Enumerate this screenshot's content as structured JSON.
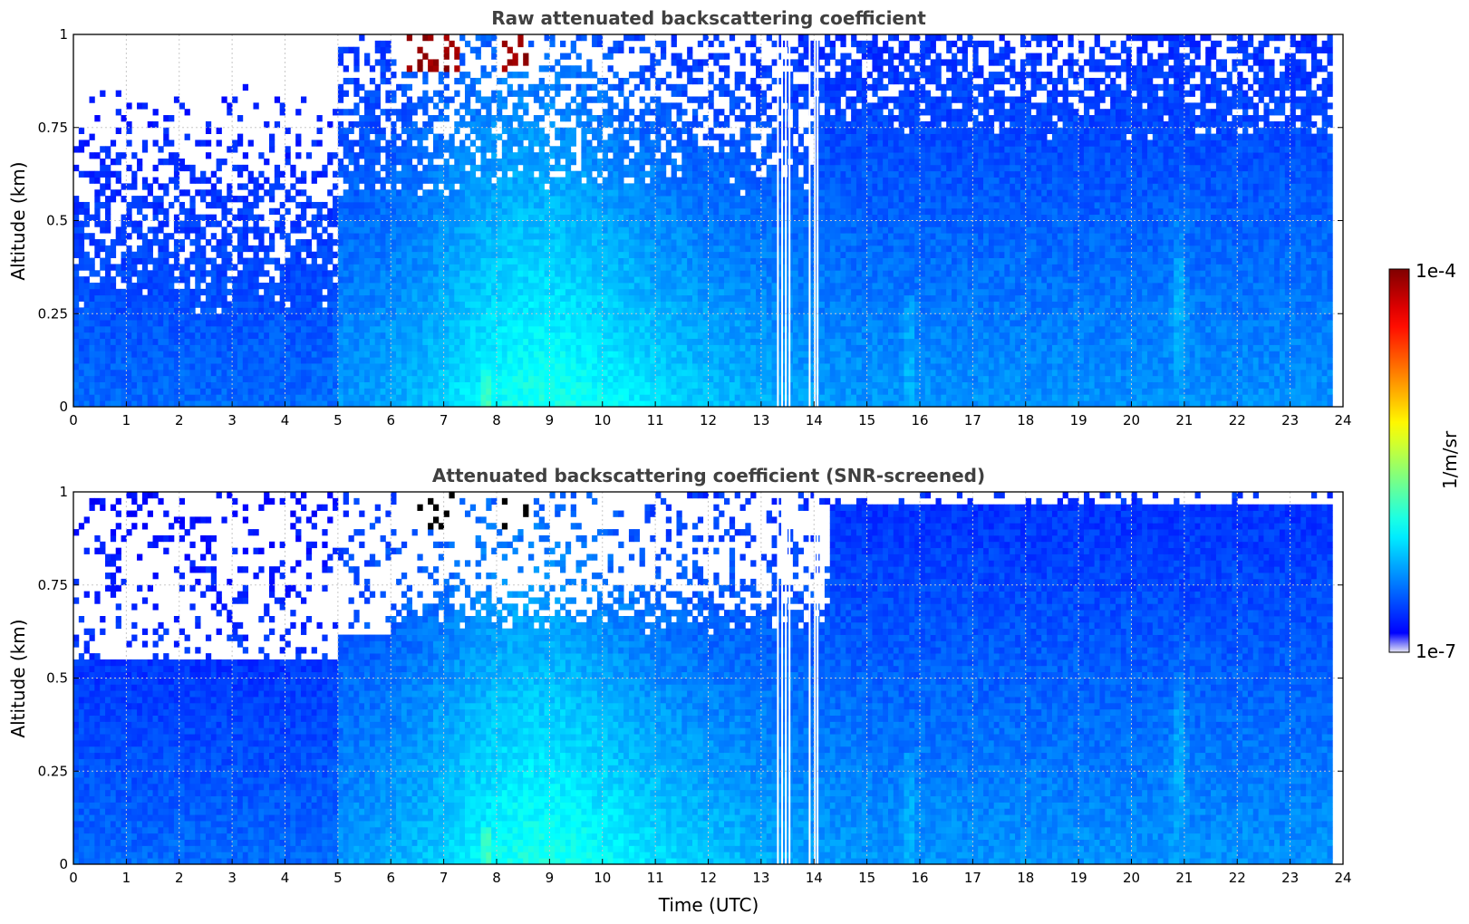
{
  "chart_data": [
    {
      "type": "heatmap",
      "title": "Raw attenuated backscattering coefficient",
      "xlabel": "",
      "ylabel": "Altitude (km)",
      "xlim": [
        0,
        24
      ],
      "ylim": [
        0,
        1
      ],
      "xticks": [
        "0",
        "1",
        "2",
        "3",
        "4",
        "5",
        "6",
        "7",
        "8",
        "9",
        "10",
        "11",
        "12",
        "13",
        "14",
        "15",
        "16",
        "17",
        "18",
        "19",
        "20",
        "21",
        "22",
        "23",
        "24"
      ],
      "yticks": [
        "0",
        "0.25",
        "0.5",
        "0.75",
        "1"
      ],
      "grid": true,
      "data_end_hour": 23.8,
      "gaps_hours": [
        13.3,
        13.38,
        13.45,
        13.52,
        13.9,
        14.0,
        14.05
      ],
      "screened": false
    },
    {
      "type": "heatmap",
      "title": "Attenuated backscattering coefficient (SNR-screened)",
      "xlabel": "Time (UTC)",
      "ylabel": "Altitude (km)",
      "xlim": [
        0,
        24
      ],
      "ylim": [
        0,
        1
      ],
      "xticks": [
        "0",
        "1",
        "2",
        "3",
        "4",
        "5",
        "6",
        "7",
        "8",
        "9",
        "10",
        "11",
        "12",
        "13",
        "14",
        "15",
        "16",
        "17",
        "18",
        "19",
        "20",
        "21",
        "22",
        "23",
        "24"
      ],
      "yticks": [
        "0",
        "0.25",
        "0.5",
        "0.75",
        "1"
      ],
      "grid": true,
      "data_end_hour": 23.8,
      "gaps_hours": [
        13.3,
        13.38,
        13.45,
        13.52,
        13.9,
        14.0,
        14.05
      ],
      "screened": true
    }
  ],
  "colorbar": {
    "label": "1/m/sr",
    "max_label": "1e-4",
    "min_label": "1e-7",
    "scale": "log",
    "range": [
      1e-07,
      0.0001
    ],
    "colormap": "jet"
  }
}
